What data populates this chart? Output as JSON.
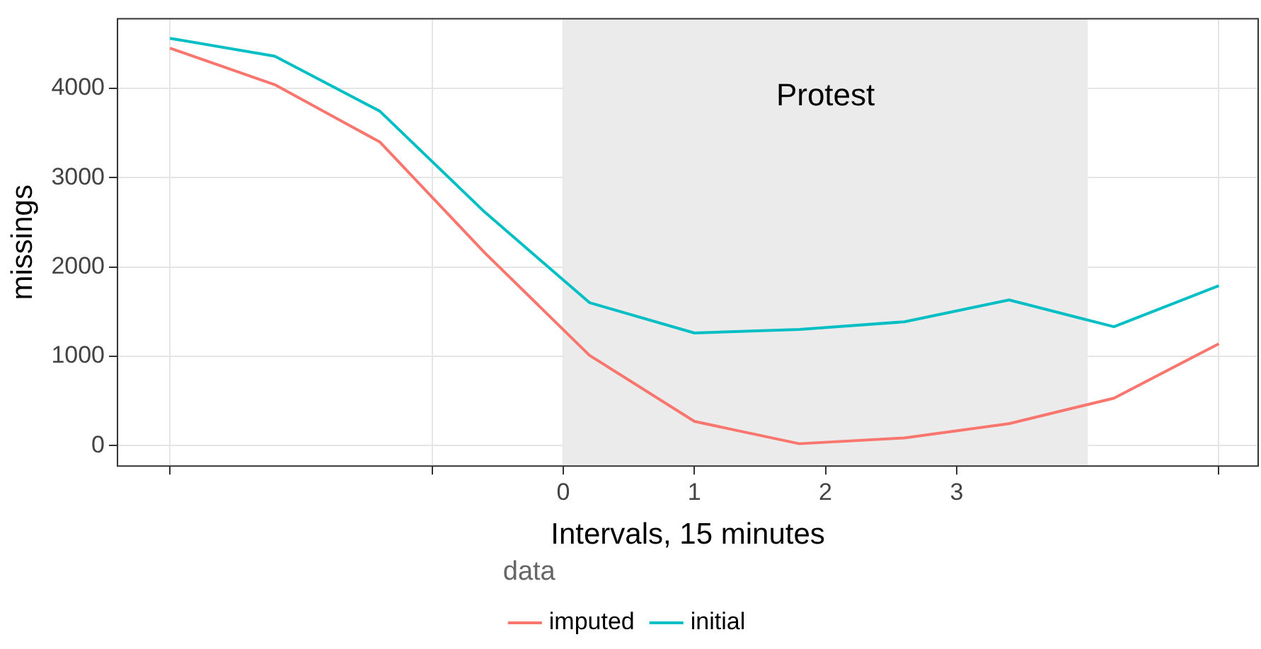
{
  "chart_data": {
    "type": "line",
    "xlabel": "Intervals, 15 minutes",
    "ylabel": "missings",
    "legend_title": "data",
    "legend": "bottom",
    "grid": true,
    "x": [
      -3,
      -2.2,
      -1.4,
      -0.6,
      0.2,
      1.0,
      1.8,
      2.6,
      3.4,
      4.2,
      5.0
    ],
    "xlim": [
      -3.4,
      5.3
    ],
    "xticks": [
      {
        "value": -3,
        "label": null
      },
      {
        "value": -1,
        "label": null
      },
      0,
      1,
      2,
      3,
      {
        "value": 5,
        "label": null
      }
    ],
    "ylim": [
      -230,
      4780
    ],
    "yticks": [
      0,
      1000,
      2000,
      3000,
      4000
    ],
    "series": [
      {
        "name": "imputed",
        "color": "#f8766d",
        "values": [
          4450,
          4040,
          3400,
          2160,
          1010,
          270,
          20,
          85,
          245,
          530,
          1140
        ]
      },
      {
        "name": "initial",
        "color": "#00bfc4",
        "values": [
          4560,
          4360,
          3745,
          2615,
          1600,
          1260,
          1300,
          1385,
          1630,
          1330,
          1790
        ]
      }
    ],
    "bands": [
      {
        "axis": "x",
        "from": 0,
        "to": 4,
        "label": "Protest",
        "color": "#ebebeb"
      }
    ]
  }
}
